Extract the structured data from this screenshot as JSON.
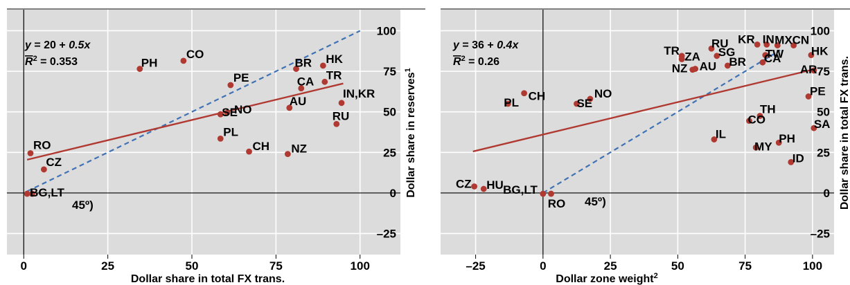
{
  "colors": {
    "plot_bg": "#dcdcdc",
    "grid": "#ffffff",
    "point": "#b03a32",
    "fit_line": "#b03a32",
    "diagonal": "#3f72b5",
    "axis": "#000000"
  },
  "chart_data": [
    {
      "type": "scatter",
      "title": "",
      "xlabel": "Dollar share in total FX trans.",
      "ylabel": "Dollar share in reserves",
      "ylabel_sup": "1",
      "xlim": [
        -5,
        112
      ],
      "ylim": [
        -38,
        113
      ],
      "xticks": [
        0,
        25,
        50,
        75,
        100
      ],
      "yticks": [
        -25,
        0,
        25,
        50,
        75,
        100
      ],
      "grid": true,
      "equation": "y = 20 + 0.5x",
      "r2_label": "R",
      "r2_value": " = 0.353",
      "fit": {
        "intercept": 20,
        "slope": 0.5,
        "x_range": [
          1,
          95
        ]
      },
      "diagonal": {
        "label": "45º)",
        "x_range": [
          1,
          100
        ]
      },
      "points": [
        {
          "label": "PH",
          "x": 34.5,
          "y": 76.5
        },
        {
          "label": "CO",
          "x": 47.5,
          "y": 81.5
        },
        {
          "label": "PE",
          "x": 61.5,
          "y": 66.5
        },
        {
          "label": "SE",
          "x": 58.5,
          "y": 48.5
        },
        {
          "label": "NO",
          "x": 60.5,
          "y": 49.5
        },
        {
          "label": "PL",
          "x": 58.5,
          "y": 33.5
        },
        {
          "label": "CH",
          "x": 67.0,
          "y": 25.5
        },
        {
          "label": "NZ",
          "x": 78.5,
          "y": 24.0
        },
        {
          "label": "BR",
          "x": 81.0,
          "y": 76.5
        },
        {
          "label": "HK",
          "x": 89.0,
          "y": 78.5
        },
        {
          "label": "CA",
          "x": 82.5,
          "y": 64.5
        },
        {
          "label": "TR",
          "x": 89.5,
          "y": 68.5
        },
        {
          "label": "AU",
          "x": 79.0,
          "y": 52.5
        },
        {
          "label": "IN,KR",
          "x": 94.5,
          "y": 55.5
        },
        {
          "label": "RU",
          "x": 93.0,
          "y": 42.5
        },
        {
          "label": "RO",
          "x": 2.0,
          "y": 24.5
        },
        {
          "label": "CZ",
          "x": 6.0,
          "y": 14.5
        },
        {
          "label": "BG,LT",
          "x": 1.0,
          "y": -0.5
        },
        {
          "label": "",
          "x": 2.5,
          "y": -0.5
        }
      ]
    },
    {
      "type": "scatter",
      "title": "",
      "xlabel": "Dollar zone weight",
      "xlabel_sup": "2",
      "ylabel": "Dollar share in total FX trans.",
      "xlim": [
        -38,
        108
      ],
      "ylim": [
        -38,
        113
      ],
      "xticks": [
        -25,
        0,
        25,
        50,
        75,
        100
      ],
      "yticks": [
        -25,
        0,
        25,
        50,
        75,
        100
      ],
      "grid": true,
      "equation": "y = 36 + 0.4x",
      "r2_label": "R",
      "r2_value": " = 0.26",
      "fit": {
        "intercept": 36,
        "slope": 0.4,
        "x_range": [
          -26,
          100
        ]
      },
      "diagonal": {
        "label": "45º)",
        "x_range": [
          0,
          88
        ]
      },
      "points": [
        {
          "label": "CZ",
          "x": -25.5,
          "y": 4.0
        },
        {
          "label": "HU",
          "x": -22.0,
          "y": 2.5
        },
        {
          "label": "BG,LT",
          "x": 0.0,
          "y": -0.5
        },
        {
          "label": "RO",
          "x": 3.0,
          "y": -0.5
        },
        {
          "label": "PL",
          "x": -13.0,
          "y": 55.0
        },
        {
          "label": "CH",
          "x": -7.0,
          "y": 61.5
        },
        {
          "label": "SE",
          "x": 12.5,
          "y": 55.0
        },
        {
          "label": "NO",
          "x": 17.5,
          "y": 58.0
        },
        {
          "label": "TR",
          "x": 51.5,
          "y": 84.5
        },
        {
          "label": "ZA",
          "x": 51.5,
          "y": 82.5
        },
        {
          "label": "NZ",
          "x": 55.5,
          "y": 76.0
        },
        {
          "label": "AU",
          "x": 56.5,
          "y": 76.5
        },
        {
          "label": "RU",
          "x": 62.5,
          "y": 89.0
        },
        {
          "label": "SG",
          "x": 64.5,
          "y": 84.5
        },
        {
          "label": "BR",
          "x": 68.5,
          "y": 78.5
        },
        {
          "label": "KR",
          "x": 79.5,
          "y": 91.5
        },
        {
          "label": "IN",
          "x": 83.0,
          "y": 91.5
        },
        {
          "label": "MX",
          "x": 87.0,
          "y": 91.0
        },
        {
          "label": "CN",
          "x": 93.0,
          "y": 91.0
        },
        {
          "label": "TW",
          "x": 82.5,
          "y": 85.0
        },
        {
          "label": "CA",
          "x": 81.5,
          "y": 80.5
        },
        {
          "label": "HK",
          "x": 99.5,
          "y": 85.0
        },
        {
          "label": "AR",
          "x": 100.5,
          "y": 75.5
        },
        {
          "label": "PE",
          "x": 98.5,
          "y": 59.5
        },
        {
          "label": "CO",
          "x": 76.5,
          "y": 44.5
        },
        {
          "label": "TH",
          "x": 80.5,
          "y": 47.5
        },
        {
          "label": "SA",
          "x": 100.5,
          "y": 40.0
        },
        {
          "label": "IL",
          "x": 63.5,
          "y": 33.0
        },
        {
          "label": "MY",
          "x": 79.0,
          "y": 28.0
        },
        {
          "label": "PH",
          "x": 87.5,
          "y": 31.0
        },
        {
          "label": "ID",
          "x": 92.0,
          "y": 19.0
        }
      ]
    }
  ]
}
